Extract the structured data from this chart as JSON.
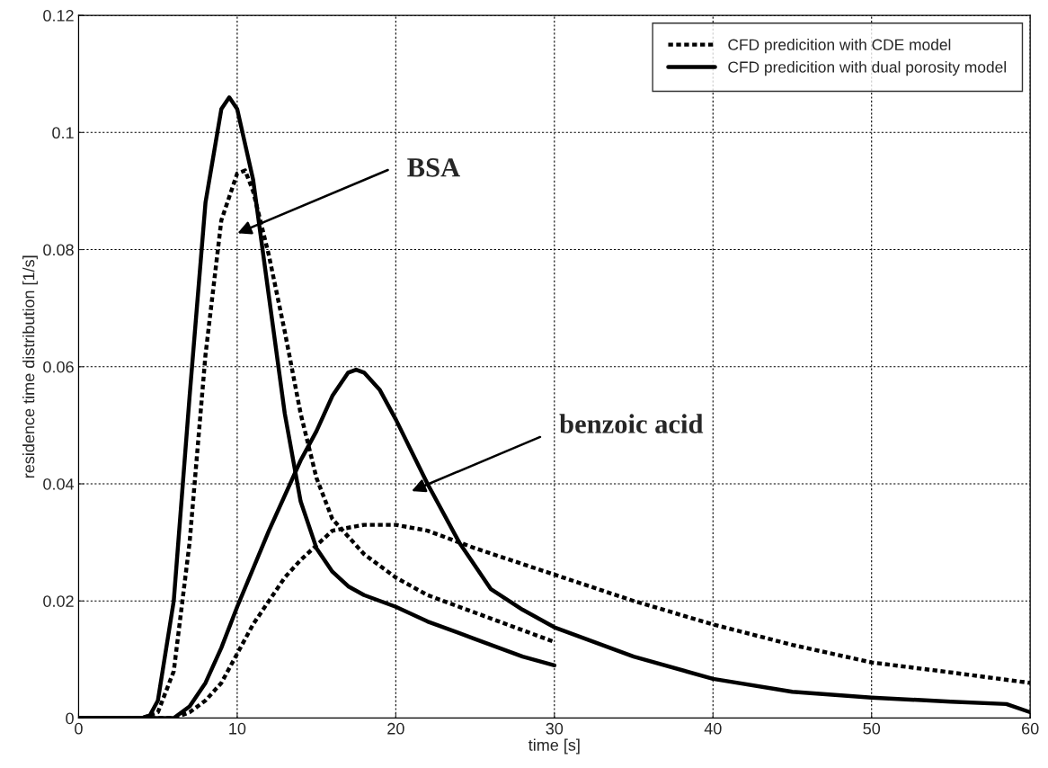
{
  "chart_data": {
    "type": "line",
    "xlabel": "time [s]",
    "ylabel": "residence time distribution [1/s]",
    "xlim": [
      0,
      60
    ],
    "ylim": [
      0,
      0.12
    ],
    "xticks": [
      0,
      10,
      20,
      30,
      40,
      50,
      60
    ],
    "yticks": [
      0,
      0.02,
      0.04,
      0.06,
      0.08,
      0.1,
      0.12
    ],
    "grid": true,
    "legend": "top right",
    "marker": "none",
    "series": [
      {
        "name": "CFD predicition with CDE model",
        "color": "#000000",
        "line_style": "dotted",
        "x": [
          0,
          4,
          5,
          6,
          7,
          8,
          9,
          10,
          10.5,
          11,
          12,
          13,
          14,
          15,
          16,
          18,
          20,
          22,
          25,
          28,
          30
        ],
        "values": [
          0,
          0,
          0.001,
          0.008,
          0.03,
          0.062,
          0.085,
          0.093,
          0.0935,
          0.09,
          0.079,
          0.066,
          0.052,
          0.041,
          0.034,
          0.028,
          0.024,
          0.021,
          0.018,
          0.015,
          0.013
        ]
      },
      {
        "name": "CFD predicition with dual porosity model",
        "color": "#000000",
        "line_style": "solid",
        "x": [
          0,
          4,
          4.5,
          5,
          6,
          7,
          8,
          9,
          9.5,
          10,
          11,
          12,
          13,
          14,
          15,
          16,
          17,
          18,
          20,
          22,
          25,
          28,
          30
        ],
        "values": [
          0,
          0,
          0.0005,
          0.003,
          0.02,
          0.055,
          0.088,
          0.104,
          0.106,
          0.104,
          0.092,
          0.072,
          0.052,
          0.037,
          0.029,
          0.025,
          0.0225,
          0.021,
          0.019,
          0.0165,
          0.0135,
          0.0105,
          0.009
        ]
      },
      {
        "color": "#000000",
        "line_style": "dotted",
        "x": [
          0,
          6,
          7,
          8,
          9,
          10,
          11,
          12,
          13,
          14,
          16,
          18,
          20,
          22,
          25,
          30,
          35,
          40,
          45,
          50,
          55,
          60
        ],
        "values": [
          0,
          0,
          0.001,
          0.003,
          0.006,
          0.011,
          0.016,
          0.02,
          0.024,
          0.027,
          0.032,
          0.033,
          0.033,
          0.032,
          0.029,
          0.0245,
          0.02,
          0.016,
          0.0125,
          0.0095,
          0.0078,
          0.006
        ]
      },
      {
        "color": "#000000",
        "line_style": "solid",
        "x": [
          0,
          6,
          7,
          8,
          9,
          10,
          12,
          14,
          15,
          16,
          17,
          17.5,
          18,
          19,
          20,
          22,
          24,
          26,
          28,
          30,
          35,
          40,
          45,
          50,
          55,
          58.5,
          60
        ],
        "values": [
          0,
          0,
          0.002,
          0.006,
          0.012,
          0.019,
          0.032,
          0.044,
          0.049,
          0.055,
          0.059,
          0.0595,
          0.059,
          0.056,
          0.051,
          0.04,
          0.03,
          0.022,
          0.0185,
          0.0155,
          0.0105,
          0.0067,
          0.0045,
          0.0035,
          0.0028,
          0.0024,
          0.001
        ]
      }
    ],
    "annotations": [
      "BSA",
      "benzoic acid"
    ]
  }
}
